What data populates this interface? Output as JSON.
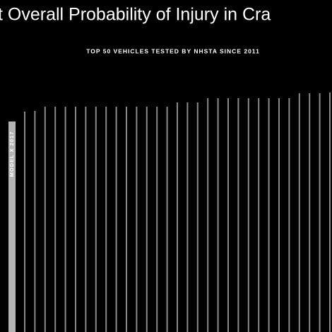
{
  "chart_data": {
    "type": "bar",
    "title": "t Overall Probability of Injury in Cra",
    "subtitle": "TOP 50 VEHICLES TESTED BY NHSTA SINCE 2011",
    "categories": [
      "MODEL X  2017",
      null,
      null,
      null,
      null,
      null,
      null,
      null,
      null,
      null,
      null,
      null,
      null,
      null,
      null,
      null,
      null,
      null,
      null,
      null,
      null,
      null,
      null,
      null,
      null,
      null,
      null,
      null,
      null,
      null,
      null,
      null
    ],
    "values": [
      298,
      312,
      313,
      319,
      319,
      319,
      319,
      319,
      319,
      319,
      319,
      319,
      319,
      319,
      319,
      319,
      325,
      325,
      325,
      331,
      331,
      331,
      331,
      331,
      331,
      331,
      331,
      331,
      338,
      338,
      338,
      339
    ],
    "highlight_color": "#b4b4b4",
    "color": "#8a8a8a",
    "ylim": [
      0,
      470
    ]
  }
}
